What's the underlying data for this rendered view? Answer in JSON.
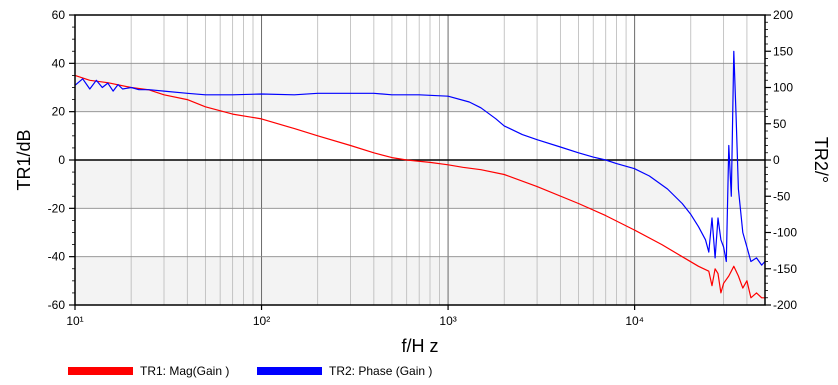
{
  "chart_data": {
    "type": "line",
    "xlabel": "f/H z",
    "ylabel": "TR1/dB",
    "y2label": "TR2/°",
    "x_scale": "log",
    "xlim": [
      10,
      50000
    ],
    "ylim": [
      -60,
      60
    ],
    "y2lim": [
      -200,
      200
    ],
    "grid": true,
    "x_ticks": [
      10,
      100,
      1000,
      10000
    ],
    "x_tick_labels": [
      "10¹",
      "10²",
      "10³",
      "10⁴"
    ],
    "y_ticks": [
      -60,
      -40,
      -20,
      0,
      20,
      40,
      60
    ],
    "y_tick_labels": [
      "-60",
      "-40",
      "-20",
      "0",
      "20",
      "40",
      "60"
    ],
    "y2_ticks": [
      -200,
      -150,
      -100,
      -50,
      0,
      50,
      100,
      150,
      200
    ],
    "y2_tick_labels": [
      "-200",
      "-150",
      "-100",
      "-50",
      "0",
      "50",
      "100",
      "150",
      "200"
    ],
    "legend_position": "bottom",
    "series": [
      {
        "name": "TR1: Mag(Gain )",
        "axis": "left",
        "color": "#ff0000",
        "x": [
          10,
          12,
          15,
          20,
          25,
          30,
          40,
          50,
          70,
          100,
          150,
          200,
          300,
          400,
          500,
          600,
          800,
          1000,
          1200,
          1500,
          2000,
          3000,
          5000,
          7000,
          10000,
          14000,
          18000,
          22000,
          25000,
          26000,
          27000,
          28000,
          29000,
          30000,
          32000,
          34000,
          36000,
          38000,
          40000,
          42000,
          45000,
          48000,
          50000
        ],
        "y": [
          35,
          33,
          32,
          30,
          29,
          27,
          25,
          22,
          19,
          17,
          13,
          10,
          6,
          3,
          1,
          0,
          -1,
          -2,
          -3,
          -4,
          -6,
          -11,
          -18,
          -23,
          -29,
          -35,
          -40,
          -44,
          -46,
          -52,
          -45,
          -47,
          -55,
          -51,
          -48,
          -44,
          -48,
          -53,
          -50,
          -57,
          -55,
          -57,
          -57
        ]
      },
      {
        "name": "TR2: Phase (Gain )",
        "axis": "right",
        "color": "#0000ff",
        "x": [
          10,
          11,
          12,
          13,
          14,
          15,
          16,
          17,
          18,
          20,
          22,
          25,
          30,
          40,
          50,
          70,
          100,
          150,
          200,
          300,
          400,
          500,
          700,
          1000,
          1300,
          1500,
          1800,
          2000,
          2500,
          3000,
          4000,
          5000,
          6000,
          7000,
          8000,
          10000,
          12000,
          15000,
          18000,
          20000,
          22000,
          24000,
          25000,
          26000,
          27000,
          28000,
          29000,
          30000,
          31000,
          32000,
          33000,
          34000,
          35000,
          36000,
          38000,
          40000,
          42000,
          45000,
          48000,
          50000
        ],
        "y": [
          103,
          112,
          98,
          110,
          100,
          106,
          95,
          104,
          98,
          100,
          97,
          97,
          95,
          92,
          90,
          90,
          91,
          90,
          92,
          92,
          92,
          90,
          90,
          88,
          80,
          72,
          57,
          47,
          35,
          28,
          18,
          10,
          4,
          0,
          -5,
          -12,
          -22,
          -40,
          -60,
          -75,
          -92,
          -110,
          -127,
          -80,
          -135,
          -80,
          -110,
          -120,
          -140,
          20,
          -50,
          150,
          60,
          -40,
          -100,
          -120,
          -140,
          -135,
          -145,
          -140
        ]
      }
    ]
  }
}
